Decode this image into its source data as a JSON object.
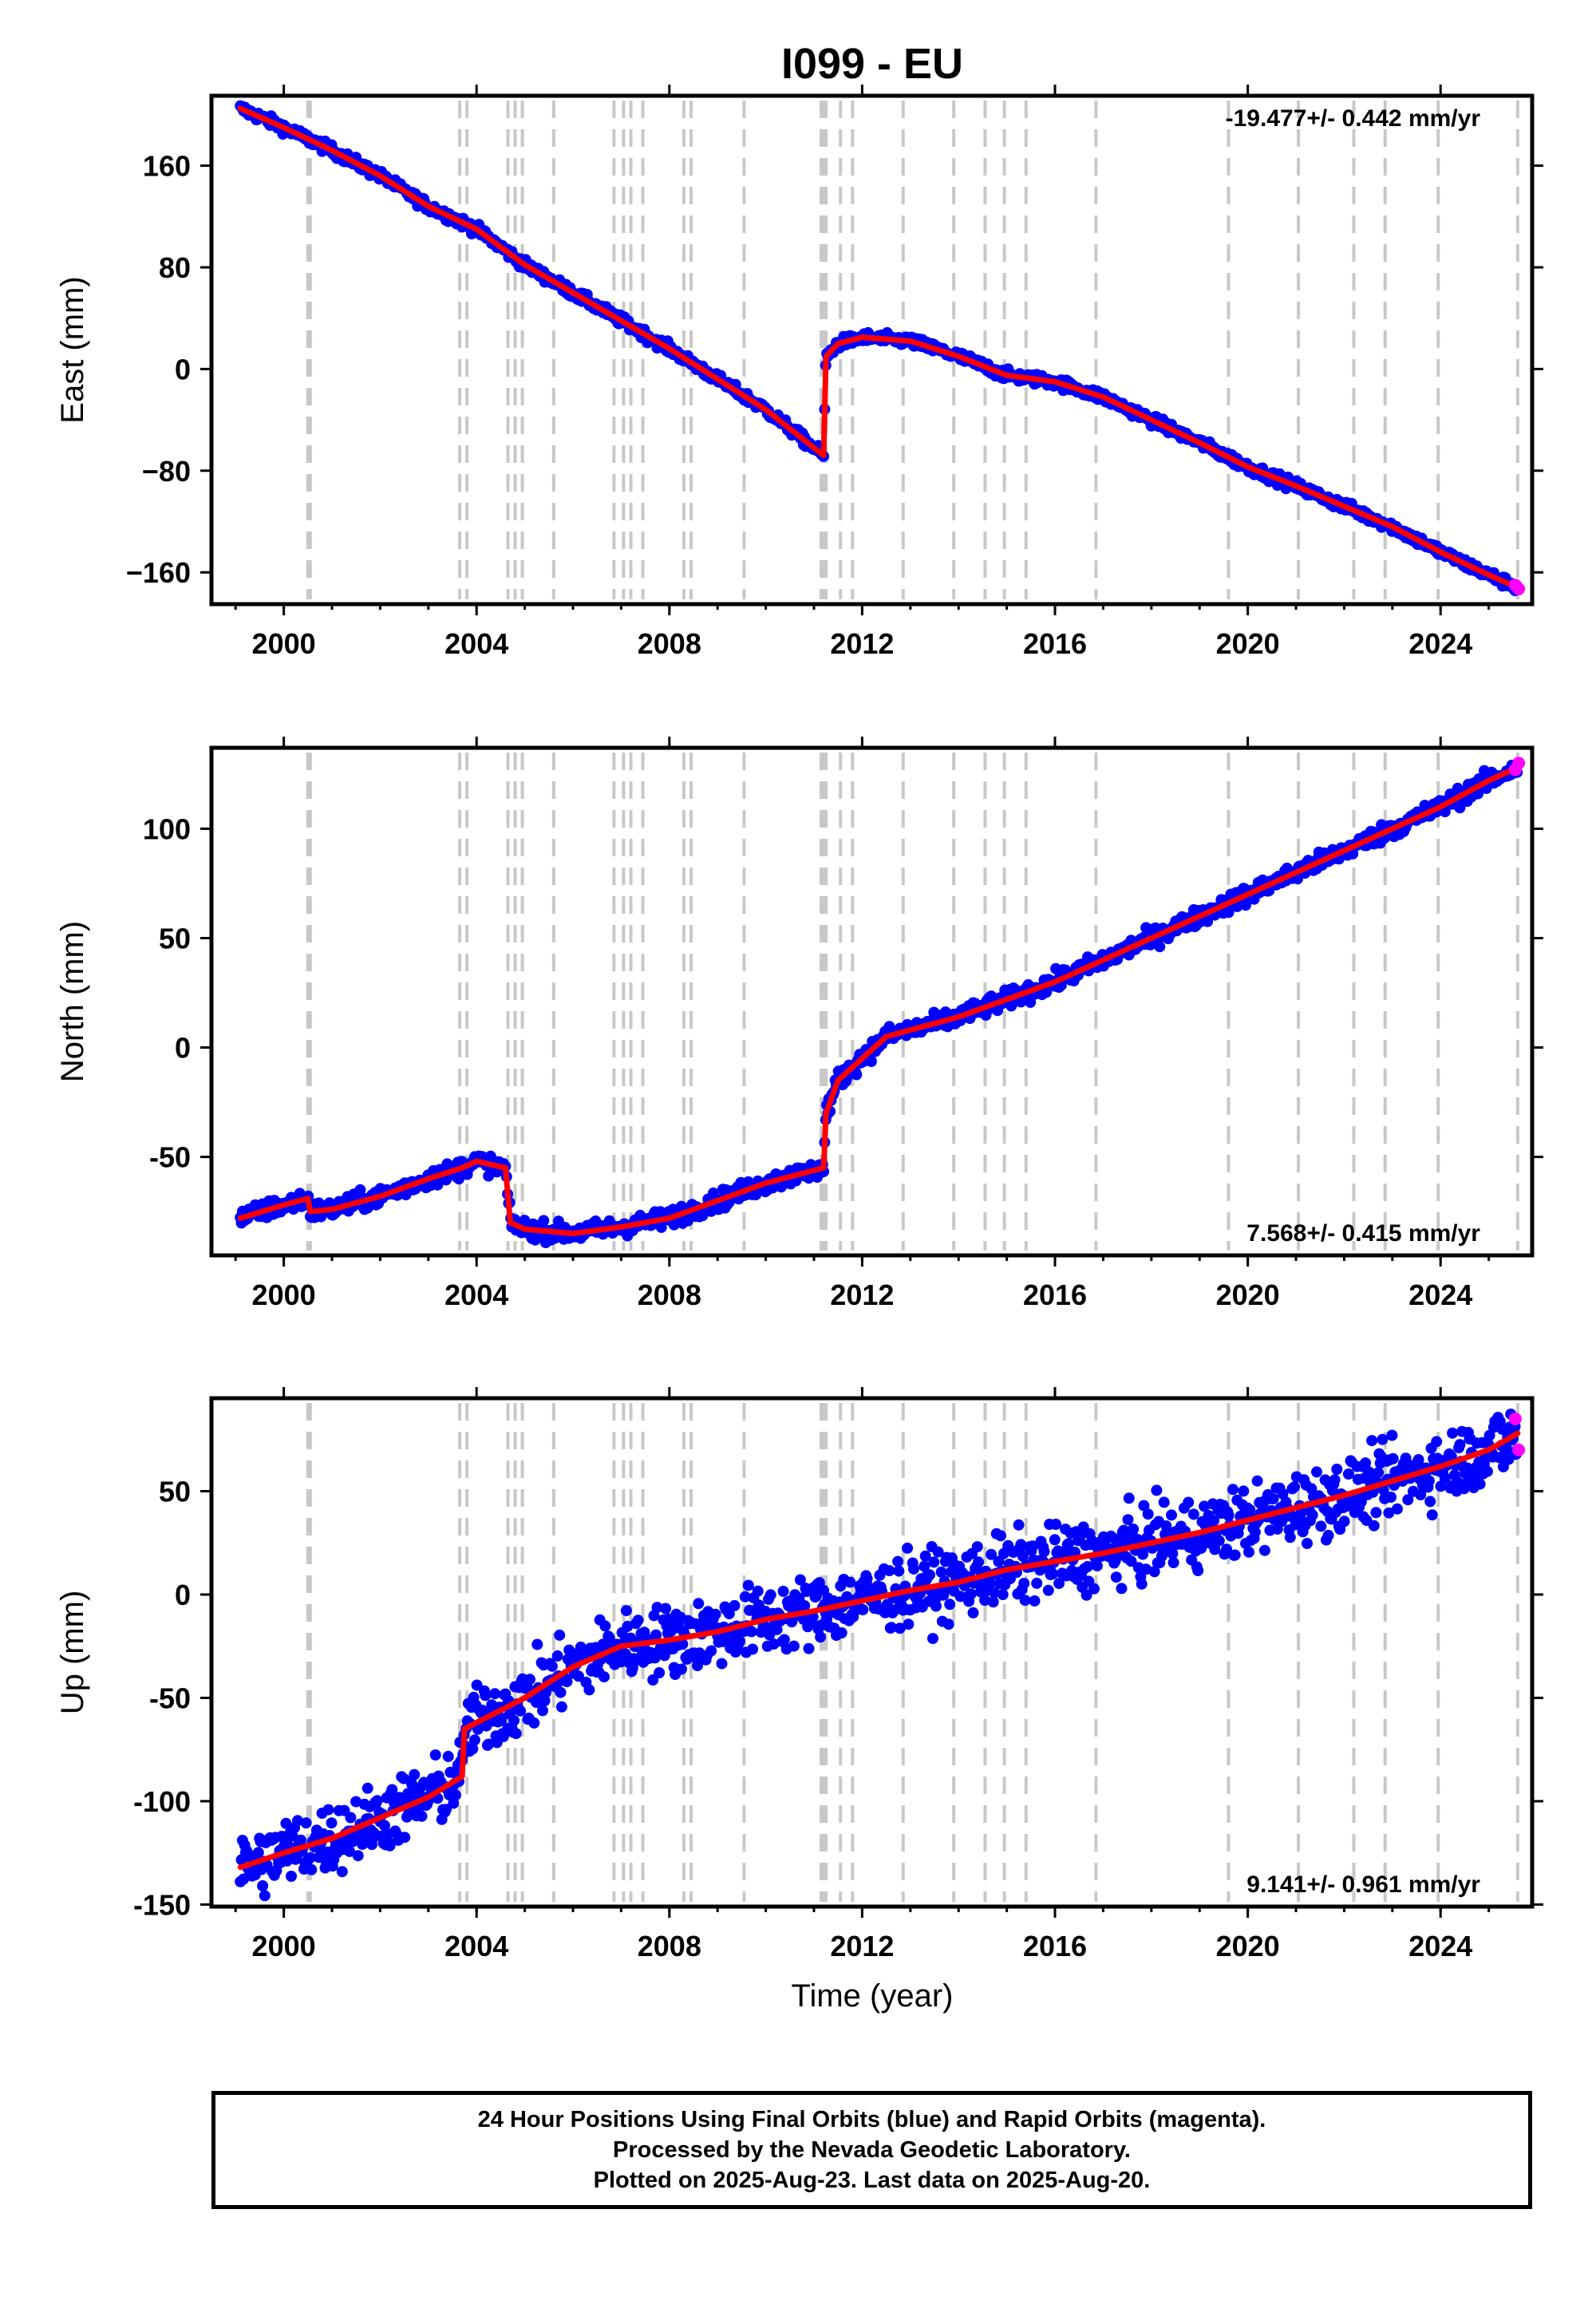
{
  "title": "I099 - EU",
  "x_axis_label": "Time (year)",
  "x_ticks": [
    "2000",
    "2004",
    "2008",
    "2012",
    "2016",
    "2020",
    "2024"
  ],
  "footer": {
    "line1": "24 Hour Positions Using Final Orbits (blue) and Rapid Orbits (magenta).",
    "line2": "Processed by the Nevada Geodetic Laboratory.",
    "line3": "Plotted on 2025-Aug-23. Last data on 2025-Aug-20."
  },
  "colors": {
    "final": "#0000ff",
    "rapid": "#ff00ff",
    "model": "#ff0000",
    "event_lines": "#c8c8c8"
  },
  "chart_data": [
    {
      "type": "scatter",
      "name": "East",
      "ylabel": "East (mm)",
      "rate": "-19.477+/- 0.442 mm/yr",
      "rate_position": "top-right",
      "xlim": [
        1998.5,
        2025.9
      ],
      "ylim": [
        -185,
        215
      ],
      "y_ticks": [
        "160",
        "80",
        "0",
        "−80",
        "−160"
      ],
      "y_tick_values": [
        160,
        80,
        0,
        -80,
        -160
      ],
      "noise_mm": 3,
      "event_lines": [
        2000.5,
        2000.55,
        2003.65,
        2003.8,
        2004.65,
        2004.8,
        2004.95,
        2005.6,
        2006.85,
        2007.05,
        2007.2,
        2007.45,
        2008.3,
        2008.45,
        2009.55,
        2011.15,
        2011.2,
        2011.25,
        2011.55,
        2011.8,
        2012.85,
        2013.9,
        2014.55,
        2014.95,
        2015.4,
        2016.85,
        2019.6,
        2021.05,
        2022.2,
        2022.85,
        2023.95,
        2025.6
      ],
      "model": [
        [
          1999.1,
          205
        ],
        [
          2000.0,
          190
        ],
        [
          2001.0,
          172
        ],
        [
          2002.0,
          152
        ],
        [
          2003.0,
          128
        ],
        [
          2004.0,
          110
        ],
        [
          2005.0,
          82
        ],
        [
          2006.0,
          60
        ],
        [
          2007.0,
          38
        ],
        [
          2008.0,
          16
        ],
        [
          2009.0,
          -8
        ],
        [
          2010.0,
          -32
        ],
        [
          2011.2,
          -68
        ],
        [
          2011.25,
          10
        ],
        [
          2011.5,
          20
        ],
        [
          2012.0,
          25
        ],
        [
          2013.0,
          22
        ],
        [
          2014.0,
          10
        ],
        [
          2015.0,
          -5
        ],
        [
          2016.0,
          -10
        ],
        [
          2017.0,
          -22
        ],
        [
          2018.0,
          -40
        ],
        [
          2019.0,
          -58
        ],
        [
          2020.0,
          -77
        ],
        [
          2021.0,
          -92
        ],
        [
          2022.0,
          -108
        ],
        [
          2023.0,
          -124
        ],
        [
          2024.0,
          -144
        ],
        [
          2025.0,
          -162
        ],
        [
          2025.6,
          -172
        ]
      ],
      "rapid_points": [
        [
          2025.55,
          -170
        ],
        [
          2025.62,
          -173
        ]
      ]
    },
    {
      "type": "scatter",
      "name": "North",
      "ylabel": "North (mm)",
      "rate": "7.568+/- 0.415 mm/yr",
      "rate_position": "bottom-right",
      "xlim": [
        1998.5,
        2025.9
      ],
      "ylim": [
        -95,
        137
      ],
      "y_ticks": [
        "100",
        "50",
        "0",
        "-50"
      ],
      "y_tick_values": [
        100,
        50,
        0,
        -50
      ],
      "noise_mm": 3,
      "event_lines": [
        2000.5,
        2000.55,
        2003.65,
        2003.8,
        2004.65,
        2004.8,
        2004.95,
        2005.6,
        2006.85,
        2007.05,
        2007.2,
        2007.45,
        2008.3,
        2008.45,
        2009.55,
        2011.15,
        2011.2,
        2011.25,
        2011.55,
        2011.8,
        2012.85,
        2013.9,
        2014.55,
        2014.95,
        2015.4,
        2016.85,
        2019.6,
        2021.05,
        2022.2,
        2022.85,
        2023.95,
        2025.6
      ],
      "model": [
        [
          1999.1,
          -78
        ],
        [
          2000.0,
          -72
        ],
        [
          2000.5,
          -69
        ],
        [
          2000.55,
          -75
        ],
        [
          2001.0,
          -74
        ],
        [
          2002.0,
          -68
        ],
        [
          2003.0,
          -60
        ],
        [
          2003.7,
          -55
        ],
        [
          2004.0,
          -52
        ],
        [
          2004.6,
          -55
        ],
        [
          2004.7,
          -80
        ],
        [
          2005.0,
          -83
        ],
        [
          2006.0,
          -85
        ],
        [
          2007.0,
          -82
        ],
        [
          2008.0,
          -78
        ],
        [
          2009.0,
          -70
        ],
        [
          2010.0,
          -62
        ],
        [
          2011.2,
          -55
        ],
        [
          2011.25,
          -30
        ],
        [
          2011.5,
          -15
        ],
        [
          2012.0,
          -5
        ],
        [
          2012.5,
          5
        ],
        [
          2013.0,
          8
        ],
        [
          2014.0,
          14
        ],
        [
          2015.0,
          22
        ],
        [
          2016.0,
          30
        ],
        [
          2017.0,
          40
        ],
        [
          2018.0,
          50
        ],
        [
          2019.0,
          60
        ],
        [
          2020.0,
          70
        ],
        [
          2021.0,
          80
        ],
        [
          2022.0,
          90
        ],
        [
          2023.0,
          100
        ],
        [
          2024.0,
          110
        ],
        [
          2025.0,
          122
        ],
        [
          2025.6,
          128
        ]
      ],
      "rapid_points": [
        [
          2025.55,
          127
        ],
        [
          2025.62,
          130
        ]
      ]
    },
    {
      "type": "scatter",
      "name": "Up",
      "ylabel": "Up (mm)",
      "rate": "9.141+/- 0.961 mm/yr",
      "rate_position": "bottom-right",
      "xlim": [
        1998.5,
        2025.9
      ],
      "ylim": [
        -151,
        95
      ],
      "y_ticks": [
        "50",
        "0",
        "-50",
        "-100",
        "-150"
      ],
      "y_tick_values": [
        50,
        0,
        -50,
        -100,
        -150
      ],
      "noise_mm": 12,
      "event_lines": [
        2000.5,
        2000.55,
        2003.65,
        2003.8,
        2004.65,
        2004.8,
        2004.95,
        2005.6,
        2006.85,
        2007.05,
        2007.2,
        2007.45,
        2008.3,
        2008.45,
        2009.55,
        2011.15,
        2011.2,
        2011.25,
        2011.55,
        2011.8,
        2012.85,
        2013.9,
        2014.55,
        2014.95,
        2015.4,
        2016.85,
        2019.6,
        2021.05,
        2022.2,
        2022.85,
        2023.95,
        2025.6
      ],
      "model": [
        [
          1999.1,
          -132
        ],
        [
          2000.0,
          -125
        ],
        [
          2001.0,
          -118
        ],
        [
          2002.0,
          -108
        ],
        [
          2003.0,
          -98
        ],
        [
          2003.7,
          -88
        ],
        [
          2003.75,
          -65
        ],
        [
          2004.0,
          -62
        ],
        [
          2005.0,
          -50
        ],
        [
          2006.0,
          -35
        ],
        [
          2007.0,
          -25
        ],
        [
          2008.0,
          -22
        ],
        [
          2009.0,
          -18
        ],
        [
          2010.0,
          -12
        ],
        [
          2011.0,
          -8
        ],
        [
          2012.0,
          -3
        ],
        [
          2013.0,
          2
        ],
        [
          2014.0,
          6
        ],
        [
          2015.0,
          12
        ],
        [
          2016.0,
          16
        ],
        [
          2017.0,
          20
        ],
        [
          2018.0,
          25
        ],
        [
          2019.0,
          30
        ],
        [
          2020.0,
          36
        ],
        [
          2021.0,
          42
        ],
        [
          2022.0,
          48
        ],
        [
          2023.0,
          55
        ],
        [
          2024.0,
          62
        ],
        [
          2025.0,
          70
        ],
        [
          2025.6,
          78
        ]
      ],
      "rapid_points": [
        [
          2025.55,
          85
        ],
        [
          2025.62,
          70
        ]
      ]
    }
  ]
}
